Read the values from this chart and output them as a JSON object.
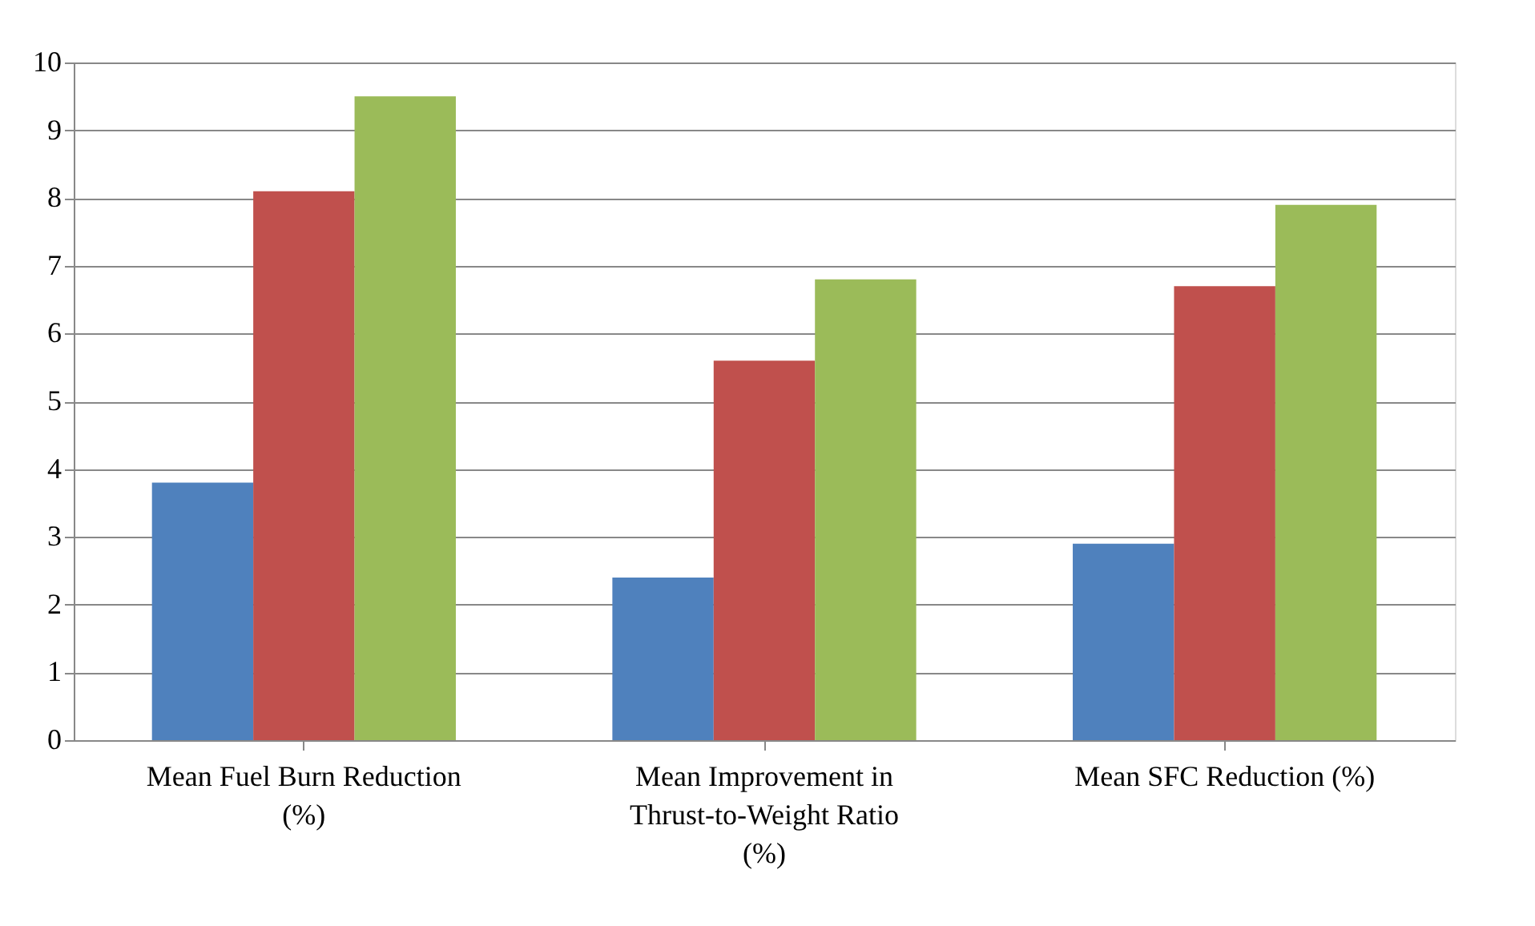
{
  "chart_data": {
    "type": "bar",
    "categories": [
      "Mean Fuel Burn Reduction (%)",
      "Mean Improvement in Thrust-to-Weight Ratio (%)",
      "Mean SFC Reduction (%)"
    ],
    "series": [
      {
        "color": "#4f81bd",
        "values": [
          3.8,
          2.4,
          2.9
        ]
      },
      {
        "color": "#c0504d",
        "values": [
          8.1,
          5.6,
          6.7
        ]
      },
      {
        "color": "#9bbb59",
        "values": [
          9.5,
          6.8,
          7.9
        ]
      }
    ],
    "ylim": [
      0,
      10
    ],
    "yticks": [
      0,
      1,
      2,
      3,
      4,
      5,
      6,
      7,
      8,
      9,
      10
    ],
    "grid": "y",
    "legend": false
  }
}
